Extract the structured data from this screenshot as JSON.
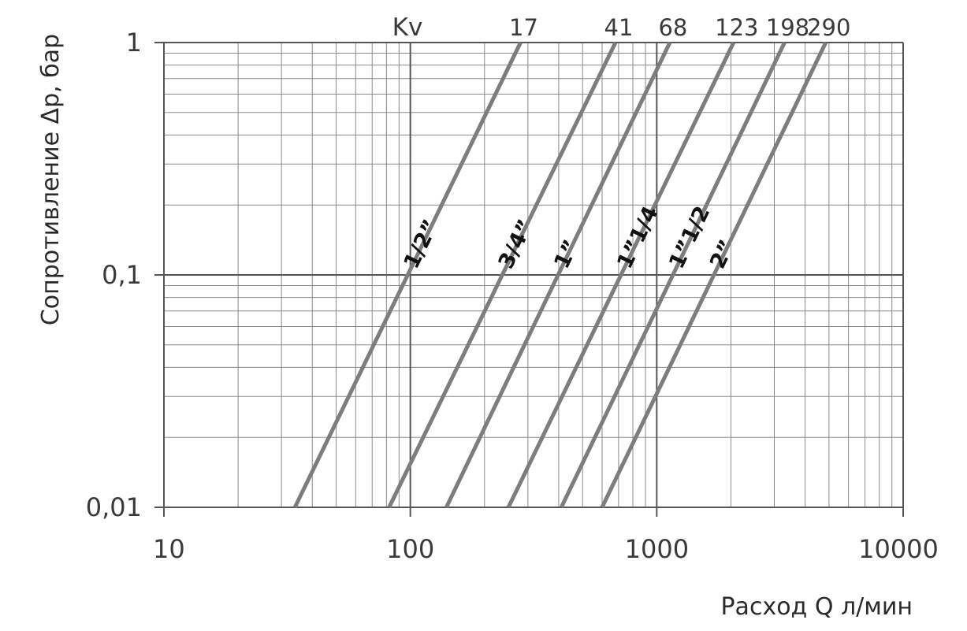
{
  "chart_data": {
    "type": "line",
    "xlabel": "Расход Q л/мин",
    "ylabel": "Сопротивление Δp, бар",
    "x_scale": "log",
    "y_scale": "log",
    "xlim": [
      10,
      10000
    ],
    "ylim": [
      0.01,
      1
    ],
    "x_ticks": [
      {
        "value": 10,
        "label": "10"
      },
      {
        "value": 100,
        "label": "100"
      },
      {
        "value": 1000,
        "label": "1000"
      },
      {
        "value": 10000,
        "label": "10000"
      }
    ],
    "y_ticks": [
      {
        "value": 0.01,
        "label": "0,01"
      },
      {
        "value": 0.1,
        "label": "0,1"
      },
      {
        "value": 1,
        "label": "1"
      }
    ],
    "grid": true,
    "kv_header": "Kv",
    "series": [
      {
        "name": "1/2”",
        "kv": "17",
        "x": [
          34,
          280
        ],
        "y": [
          0.01,
          1
        ]
      },
      {
        "name": "3/4”",
        "kv": "41",
        "x": [
          82,
          680
        ],
        "y": [
          0.01,
          1
        ]
      },
      {
        "name": "1”",
        "kv": "68",
        "x": [
          140,
          1130
        ],
        "y": [
          0.01,
          1
        ]
      },
      {
        "name": "1”1/4",
        "kv": "123",
        "x": [
          250,
          2050
        ],
        "y": [
          0.01,
          1
        ]
      },
      {
        "name": "1”1/2",
        "kv": "198",
        "x": [
          410,
          3300
        ],
        "y": [
          0.01,
          1
        ]
      },
      {
        "name": "2”",
        "kv": "290",
        "x": [
          600,
          4850
        ],
        "y": [
          0.01,
          1
        ]
      }
    ],
    "line_color": "#7d7d7d",
    "grid_color": "#8a8a8a",
    "major_grid_color": "#555555"
  }
}
